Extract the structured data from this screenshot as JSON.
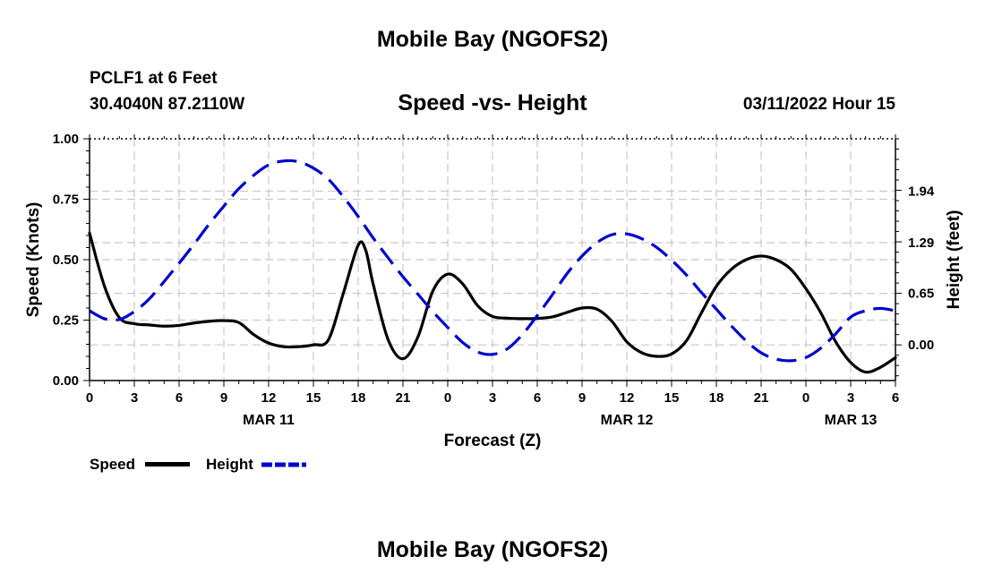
{
  "page": {
    "title": "Mobile Bay (NGOFS2)",
    "title_repeat": "Mobile Bay (NGOFS2)",
    "station_line": "PCLF1 at 6 Feet",
    "coords_line": "30.4040N  87.2110W",
    "chart_title": "Speed -vs- Height",
    "date_line": "03/11/2022 Hour 15",
    "x_title": "Forecast (Z)"
  },
  "legend": {
    "speed_label": "Speed",
    "height_label": "Height"
  },
  "chart_data": {
    "type": "line",
    "title": "Speed -vs- Height",
    "xlabel": "Forecast (Z)",
    "ylabel_left": "Speed (Knots)",
    "ylabel_right": "Height (feet)",
    "x_unit": "hour",
    "x_start": "03/11/2022 00Z",
    "xlim": [
      0,
      54
    ],
    "x_ticks": [
      0,
      3,
      6,
      9,
      12,
      15,
      18,
      21,
      24,
      27,
      30,
      33,
      36,
      39,
      42,
      45,
      48,
      51,
      54
    ],
    "x_tick_labels": [
      "0",
      "3",
      "6",
      "9",
      "12",
      "15",
      "18",
      "21",
      "0",
      "3",
      "6",
      "9",
      "12",
      "15",
      "18",
      "21",
      "0",
      "3",
      "6"
    ],
    "date_labels": [
      {
        "at": 12,
        "text": "MAR 11"
      },
      {
        "at": 36,
        "text": "MAR 12"
      },
      {
        "at": 51,
        "text": "MAR 13"
      }
    ],
    "ylim_left": [
      0,
      1.0
    ],
    "y_ticks_left": [
      0,
      0.25,
      0.5,
      0.75,
      1.0
    ],
    "y_tick_labels_left": [
      "0.00",
      "0.25",
      "0.50",
      "0.75",
      "1.00"
    ],
    "ylim_right": [
      -0.45,
      2.6
    ],
    "y_ticks_right": [
      0,
      0.65,
      1.29,
      1.94
    ],
    "y_tick_labels_right": [
      "0.00",
      "0.65",
      "1.29",
      "1.94"
    ],
    "grid": true,
    "colors": {
      "speed": "#000000",
      "height": "#0000cc",
      "grid": "#c8c8c8"
    },
    "series": [
      {
        "name": "Speed",
        "axis": "left",
        "style": "solid",
        "x": [
          0,
          1,
          2,
          3,
          4,
          5,
          6,
          7,
          8,
          9,
          10,
          11,
          12,
          13,
          14,
          15,
          16,
          17,
          18,
          18.5,
          19,
          20,
          21,
          22,
          23,
          24,
          25,
          26,
          27,
          28,
          29,
          30,
          31,
          32,
          33,
          34,
          35,
          36,
          37,
          38,
          39,
          40,
          41,
          42,
          43,
          44,
          45,
          46,
          47,
          48,
          49,
          50,
          51,
          52,
          53,
          54
        ],
        "values": [
          0.61,
          0.39,
          0.26,
          0.235,
          0.23,
          0.225,
          0.228,
          0.238,
          0.245,
          0.248,
          0.24,
          0.19,
          0.155,
          0.14,
          0.14,
          0.148,
          0.168,
          0.36,
          0.56,
          0.54,
          0.4,
          0.17,
          0.09,
          0.18,
          0.37,
          0.44,
          0.4,
          0.31,
          0.265,
          0.258,
          0.256,
          0.257,
          0.263,
          0.282,
          0.3,
          0.295,
          0.245,
          0.16,
          0.115,
          0.1,
          0.11,
          0.165,
          0.28,
          0.39,
          0.46,
          0.5,
          0.515,
          0.5,
          0.46,
          0.38,
          0.28,
          0.16,
          0.075,
          0.035,
          0.055,
          0.095
        ]
      },
      {
        "name": "Height",
        "axis": "right",
        "style": "dashed",
        "x": [
          0,
          1,
          2,
          3,
          4,
          5,
          6,
          7,
          8,
          9,
          10,
          11,
          12,
          13,
          14,
          15,
          16,
          17,
          18,
          19,
          20,
          21,
          22,
          23,
          24,
          25,
          26,
          27,
          28,
          29,
          30,
          31,
          32,
          33,
          34,
          35,
          36,
          37,
          38,
          39,
          40,
          41,
          42,
          43,
          44,
          45,
          46,
          47,
          48,
          49,
          50,
          51,
          52,
          53,
          54
        ],
        "values": [
          0.43,
          0.33,
          0.32,
          0.42,
          0.58,
          0.8,
          1.03,
          1.27,
          1.52,
          1.75,
          1.97,
          2.14,
          2.27,
          2.32,
          2.31,
          2.23,
          2.09,
          1.87,
          1.62,
          1.35,
          1.1,
          0.86,
          0.64,
          0.42,
          0.22,
          0.03,
          -0.09,
          -0.12,
          -0.05,
          0.13,
          0.37,
          0.63,
          0.9,
          1.12,
          1.29,
          1.39,
          1.4,
          1.34,
          1.23,
          1.07,
          0.88,
          0.66,
          0.45,
          0.24,
          0.05,
          -0.1,
          -0.18,
          -0.2,
          -0.16,
          -0.04,
          0.14,
          0.35,
          0.43,
          0.46,
          0.43
        ]
      }
    ]
  }
}
